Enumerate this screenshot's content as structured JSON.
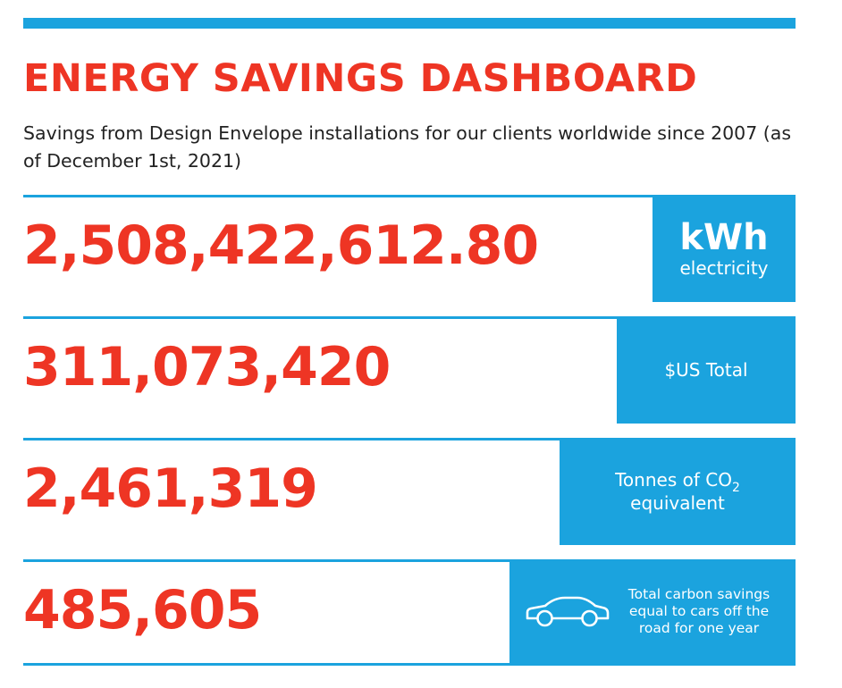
{
  "header": {
    "title": "ENERGY SAVINGS DASHBOARD",
    "subtitle": "Savings from Design Envelope installations for our clients worldwide since 2007 (as of December 1st, 2021)"
  },
  "colors": {
    "accent_blue": "#1ba3de",
    "value_red": "#ee3524",
    "text_dark": "#222222"
  },
  "metrics": {
    "electricity": {
      "value": "2,508,422,612.80",
      "unit": "kWh",
      "unit_caption": "electricity"
    },
    "dollars": {
      "value": "311,073,420",
      "unit_caption": "$US Total"
    },
    "co2": {
      "value": "2,461,319",
      "unit_caption_prefix": "Tonnes of CO",
      "unit_caption_subscript": "2",
      "unit_caption_line2": "equivalent"
    },
    "cars": {
      "value": "485,605",
      "icon": "car-icon",
      "caption_line1": "Total carbon savings",
      "caption_line2": "equal to cars off the",
      "caption_line3": "road for one year"
    }
  }
}
